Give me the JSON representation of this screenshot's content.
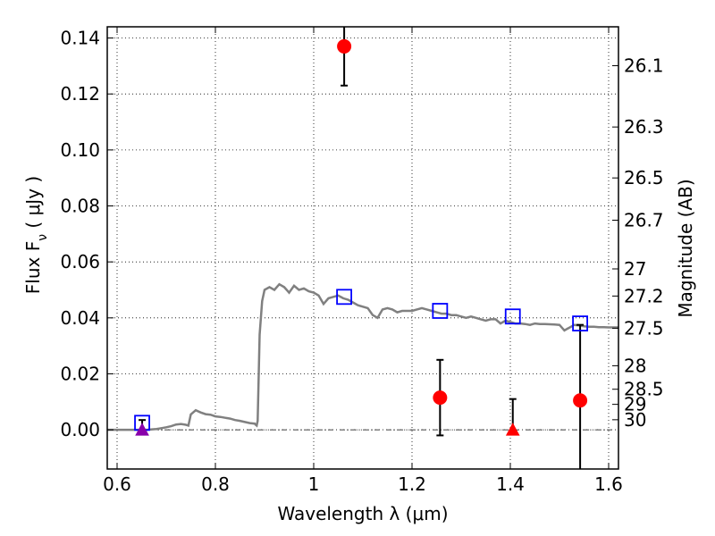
{
  "chart_data": {
    "type": "scatter",
    "xlabel": "Wavelength  λ (μm)",
    "ylabel": "Flux  F",
    "ylabel_sub": "ν",
    "ylabel_unit": " ( μJy )",
    "y2label": "Magnitude (AB)",
    "xlim": [
      0.58,
      1.62
    ],
    "ylim": [
      -0.014,
      0.144
    ],
    "grid": true,
    "x_ticks": [
      0.6,
      0.8,
      1.0,
      1.2,
      1.4,
      1.6
    ],
    "x_tick_labels": [
      "0.6",
      "0.8",
      "1",
      "1.2",
      "1.4",
      "1.6"
    ],
    "y_ticks": [
      0.0,
      0.02,
      0.04,
      0.06,
      0.08,
      0.1,
      0.12,
      0.14
    ],
    "y_tick_labels": [
      "0.00",
      "0.02",
      "0.04",
      "0.06",
      "0.08",
      "0.10",
      "0.12",
      "0.14"
    ],
    "y2_ticks": [
      {
        "label": "26.1",
        "flux": 0.1301
      },
      {
        "label": "26.3",
        "flux": 0.1082
      },
      {
        "label": "26.5",
        "flux": 0.09
      },
      {
        "label": "26.7",
        "flux": 0.0749
      },
      {
        "label": "27",
        "flux": 0.0575
      },
      {
        "label": "27.2",
        "flux": 0.0478
      },
      {
        "label": "27.5",
        "flux": 0.0363
      },
      {
        "label": "28",
        "flux": 0.0229
      },
      {
        "label": "28.5",
        "flux": 0.0145
      },
      {
        "label": "29",
        "flux": 0.0091
      },
      {
        "label": "30",
        "flux": 0.0036
      }
    ],
    "series": [
      {
        "kind": "model_sed",
        "color": "#808080",
        "x": [
          0.58,
          0.62,
          0.66,
          0.68,
          0.69,
          0.7,
          0.71,
          0.72,
          0.73,
          0.74,
          0.745,
          0.75,
          0.76,
          0.77,
          0.78,
          0.79,
          0.8,
          0.81,
          0.82,
          0.83,
          0.84,
          0.85,
          0.86,
          0.87,
          0.88,
          0.882,
          0.884,
          0.886,
          0.89,
          0.895,
          0.9,
          0.91,
          0.92,
          0.93,
          0.94,
          0.95,
          0.96,
          0.97,
          0.98,
          0.99,
          1.0,
          1.01,
          1.02,
          1.03,
          1.04,
          1.05,
          1.06,
          1.07,
          1.08,
          1.09,
          1.1,
          1.11,
          1.12,
          1.13,
          1.14,
          1.15,
          1.16,
          1.17,
          1.18,
          1.19,
          1.2,
          1.21,
          1.22,
          1.23,
          1.24,
          1.25,
          1.26,
          1.27,
          1.28,
          1.29,
          1.3,
          1.31,
          1.32,
          1.33,
          1.34,
          1.35,
          1.36,
          1.37,
          1.38,
          1.39,
          1.4,
          1.41,
          1.42,
          1.43,
          1.44,
          1.45,
          1.46,
          1.47,
          1.48,
          1.49,
          1.5,
          1.51,
          1.52,
          1.53,
          1.54,
          1.55,
          1.56,
          1.57,
          1.58,
          1.59,
          1.6,
          1.61,
          1.62
        ],
        "y": [
          0.0,
          0.0,
          0.0,
          0.0003,
          0.0006,
          0.0009,
          0.0013,
          0.0019,
          0.0021,
          0.0018,
          0.0015,
          0.0055,
          0.007,
          0.0062,
          0.0056,
          0.0054,
          0.0048,
          0.0046,
          0.0043,
          0.004,
          0.0035,
          0.0032,
          0.0028,
          0.0024,
          0.0022,
          0.0018,
          0.0015,
          0.0032,
          0.034,
          0.046,
          0.05,
          0.051,
          0.05,
          0.052,
          0.051,
          0.049,
          0.0515,
          0.05,
          0.0505,
          0.0495,
          0.049,
          0.048,
          0.045,
          0.047,
          0.0475,
          0.048,
          0.047,
          0.0465,
          0.0455,
          0.0445,
          0.044,
          0.0435,
          0.041,
          0.04,
          0.043,
          0.0435,
          0.043,
          0.042,
          0.0425,
          0.0425,
          0.0425,
          0.043,
          0.0435,
          0.043,
          0.0425,
          0.042,
          0.0415,
          0.0415,
          0.041,
          0.041,
          0.0405,
          0.04,
          0.0405,
          0.04,
          0.0395,
          0.039,
          0.0395,
          0.0395,
          0.038,
          0.039,
          0.0385,
          0.038,
          0.038,
          0.0378,
          0.0375,
          0.038,
          0.0378,
          0.0378,
          0.0377,
          0.0376,
          0.0375,
          0.0355,
          0.0365,
          0.0375,
          0.0373,
          0.037,
          0.0368,
          0.0368,
          0.0367,
          0.0367,
          0.0366,
          0.0366,
          0.0366
        ]
      },
      {
        "kind": "model_photometry",
        "marker": "open-square",
        "color": "#0000ff",
        "x": [
          0.651,
          1.062,
          1.257,
          1.405,
          1.542
        ],
        "y": [
          0.0025,
          0.0475,
          0.0425,
          0.0405,
          0.038
        ]
      },
      {
        "kind": "detections",
        "marker": "circle",
        "color": "#ff0000",
        "x": [
          1.062,
          1.257,
          1.542
        ],
        "y": [
          0.137,
          0.0115,
          0.0105
        ],
        "yerr": [
          [
            0.014,
            0.008
          ],
          [
            0.0135,
            0.0135
          ],
          [
            0.0255,
            0.027
          ]
        ]
      },
      {
        "kind": "upper_limits",
        "marker": "triangle",
        "colors": [
          "#8800aa",
          "#ff0000"
        ],
        "x": [
          0.651,
          1.405
        ],
        "y": [
          0.0,
          0.0
        ],
        "err_top": [
          0.0035,
          0.011
        ],
        "err_bottom": [
          0.0,
          0.0
        ]
      }
    ]
  }
}
